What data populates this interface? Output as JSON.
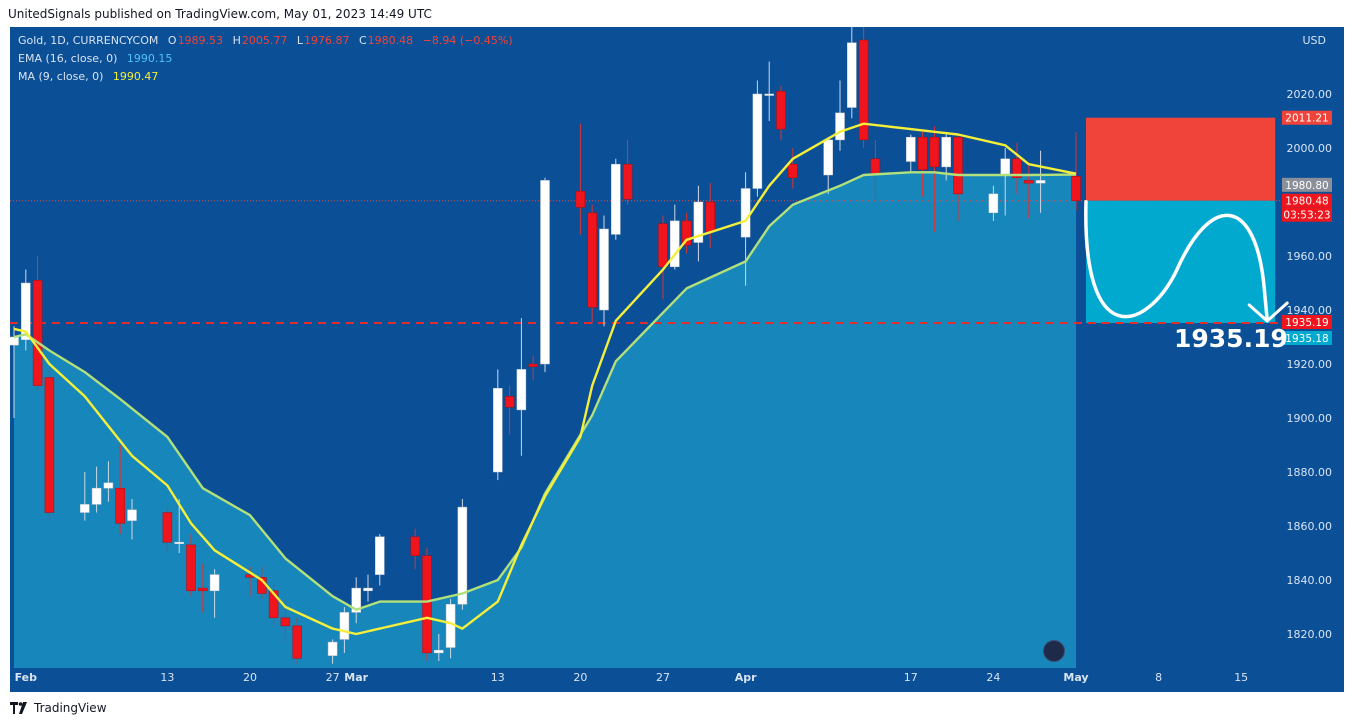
{
  "header": {
    "published": "UnitedSignals published on TradingView.com, May 01, 2023 14:49 UTC"
  },
  "legend": {
    "symbol": "Gold, 1D, CURRENCYCOM",
    "open_label": "O",
    "open": "1989.53",
    "high_label": "H",
    "high": "2005.77",
    "low_label": "L",
    "low": "1976.87",
    "close_label": "C",
    "close": "1980.48",
    "change": "−8.94 (−0.45%)",
    "ema_label": "EMA (16, close, 0)",
    "ema_value": "1990.15",
    "ma_label": "MA (9, close, 0)",
    "ma_value": "1990.47"
  },
  "footer": {
    "brand": "TradingView"
  },
  "colors": {
    "background": "#0b4f97",
    "up_body": "#ffffff",
    "down_body": "#f0151d",
    "ema_line": "#b2e07a",
    "ma_line": "#f5ef3a",
    "area_fill": "#1a8fbf",
    "target_line": "#e02e2e",
    "stop_zone": "#f0433a",
    "target_zone": "#02a9cf"
  },
  "chart_data": {
    "type": "candlestick",
    "currency": "USD",
    "y_ticks": [
      1820,
      1840,
      1860,
      1880,
      1900,
      1920,
      1940,
      1960,
      1980,
      2000,
      2020
    ],
    "y_tick_labels": [
      "1820.00",
      "1840.00",
      "1860.00",
      "1880.00",
      "1900.00",
      "1920.00",
      "1940.00",
      "1960.00",
      "1980.00",
      "2000.00",
      "2020.00"
    ],
    "x_labels": [
      {
        "label": "Feb",
        "date": "2023-02-01"
      },
      {
        "label": "13",
        "date": "2023-02-13"
      },
      {
        "label": "20",
        "date": "2023-02-20"
      },
      {
        "label": "27",
        "date": "2023-02-27"
      },
      {
        "label": "Mar",
        "date": "2023-03-01"
      },
      {
        "label": "13",
        "date": "2023-03-13"
      },
      {
        "label": "20",
        "date": "2023-03-20"
      },
      {
        "label": "27",
        "date": "2023-03-27"
      },
      {
        "label": "Apr",
        "date": "2023-04-03"
      },
      {
        "label": "17",
        "date": "2023-04-17"
      },
      {
        "label": "24",
        "date": "2023-04-24"
      },
      {
        "label": "May",
        "date": "2023-05-01"
      },
      {
        "label": "8",
        "date": "2023-05-08"
      },
      {
        "label": "15",
        "date": "2023-05-15"
      }
    ],
    "candles": [
      {
        "d": "2023-01-31",
        "o": 1927,
        "h": 1934,
        "l": 1900,
        "c": 1930
      },
      {
        "d": "2023-02-01",
        "o": 1929,
        "h": 1955,
        "l": 1925,
        "c": 1950
      },
      {
        "d": "2023-02-02",
        "o": 1951,
        "h": 1960,
        "l": 1910,
        "c": 1912
      },
      {
        "d": "2023-02-03",
        "o": 1915,
        "h": 1918,
        "l": 1862,
        "c": 1865
      },
      {
        "d": "2023-02-06",
        "o": 1865,
        "h": 1880,
        "l": 1862,
        "c": 1868
      },
      {
        "d": "2023-02-07",
        "o": 1868,
        "h": 1882,
        "l": 1865,
        "c": 1874
      },
      {
        "d": "2023-02-08",
        "o": 1874,
        "h": 1884,
        "l": 1869,
        "c": 1876
      },
      {
        "d": "2023-02-09",
        "o": 1874,
        "h": 1890,
        "l": 1857,
        "c": 1861
      },
      {
        "d": "2023-02-10",
        "o": 1862,
        "h": 1870,
        "l": 1855,
        "c": 1866
      },
      {
        "d": "2023-02-13",
        "o": 1865,
        "h": 1867,
        "l": 1850,
        "c": 1854
      },
      {
        "d": "2023-02-14",
        "o": 1854,
        "h": 1870,
        "l": 1850,
        "c": 1854
      },
      {
        "d": "2023-02-15",
        "o": 1853,
        "h": 1857,
        "l": 1834,
        "c": 1836
      },
      {
        "d": "2023-02-16",
        "o": 1837,
        "h": 1846,
        "l": 1828,
        "c": 1836
      },
      {
        "d": "2023-02-17",
        "o": 1836,
        "h": 1844,
        "l": 1826,
        "c": 1842
      },
      {
        "d": "2023-02-20",
        "o": 1842,
        "h": 1845,
        "l": 1834,
        "c": 1841
      },
      {
        "d": "2023-02-21",
        "o": 1841,
        "h": 1845,
        "l": 1833,
        "c": 1835
      },
      {
        "d": "2023-02-22",
        "o": 1836,
        "h": 1839,
        "l": 1823,
        "c": 1826
      },
      {
        "d": "2023-02-23",
        "o": 1826,
        "h": 1833,
        "l": 1817,
        "c": 1823
      },
      {
        "d": "2023-02-24",
        "o": 1823,
        "h": 1826,
        "l": 1809,
        "c": 1811
      },
      {
        "d": "2023-02-27",
        "o": 1812,
        "h": 1818,
        "l": 1809,
        "c": 1817
      },
      {
        "d": "2023-02-28",
        "o": 1818,
        "h": 1830,
        "l": 1813,
        "c": 1828
      },
      {
        "d": "2023-03-01",
        "o": 1828,
        "h": 1841,
        "l": 1824,
        "c": 1837
      },
      {
        "d": "2023-03-02",
        "o": 1836,
        "h": 1842,
        "l": 1832,
        "c": 1837
      },
      {
        "d": "2023-03-03",
        "o": 1842,
        "h": 1857,
        "l": 1838,
        "c": 1856
      },
      {
        "d": "2023-03-06",
        "o": 1856,
        "h": 1859,
        "l": 1844,
        "c": 1849
      },
      {
        "d": "2023-03-07",
        "o": 1849,
        "h": 1852,
        "l": 1810,
        "c": 1813
      },
      {
        "d": "2023-03-08",
        "o": 1813,
        "h": 1820,
        "l": 1810,
        "c": 1814
      },
      {
        "d": "2023-03-09",
        "o": 1815,
        "h": 1833,
        "l": 1811,
        "c": 1831
      },
      {
        "d": "2023-03-10",
        "o": 1831,
        "h": 1870,
        "l": 1829,
        "c": 1867
      },
      {
        "d": "2023-03-13",
        "o": 1880,
        "h": 1918,
        "l": 1877,
        "c": 1911
      },
      {
        "d": "2023-03-14",
        "o": 1908,
        "h": 1912,
        "l": 1894,
        "c": 1904
      },
      {
        "d": "2023-03-15",
        "o": 1903,
        "h": 1937,
        "l": 1886,
        "c": 1918
      },
      {
        "d": "2023-03-16",
        "o": 1920,
        "h": 1923,
        "l": 1914,
        "c": 1919
      },
      {
        "d": "2023-03-17",
        "o": 1920,
        "h": 1989,
        "l": 1917,
        "c": 1988
      },
      {
        "d": "2023-03-20",
        "o": 1984,
        "h": 2009,
        "l": 1968,
        "c": 1978
      },
      {
        "d": "2023-03-21",
        "o": 1976,
        "h": 1979,
        "l": 1935,
        "c": 1941
      },
      {
        "d": "2023-03-22",
        "o": 1940,
        "h": 1975,
        "l": 1934,
        "c": 1970
      },
      {
        "d": "2023-03-23",
        "o": 1968,
        "h": 1996,
        "l": 1966,
        "c": 1994
      },
      {
        "d": "2023-03-24",
        "o": 1994,
        "h": 2003,
        "l": 1979,
        "c": 1981
      },
      {
        "d": "2023-03-27",
        "o": 1972,
        "h": 1975,
        "l": 1944,
        "c": 1956
      },
      {
        "d": "2023-03-28",
        "o": 1956,
        "h": 1979,
        "l": 1955,
        "c": 1973
      },
      {
        "d": "2023-03-29",
        "o": 1973,
        "h": 1976,
        "l": 1961,
        "c": 1964
      },
      {
        "d": "2023-03-30",
        "o": 1965,
        "h": 1986,
        "l": 1958,
        "c": 1980
      },
      {
        "d": "2023-03-31",
        "o": 1980,
        "h": 1987,
        "l": 1963,
        "c": 1969
      },
      {
        "d": "2023-04-03",
        "o": 1967,
        "h": 1991,
        "l": 1949,
        "c": 1985
      },
      {
        "d": "2023-04-04",
        "o": 1985,
        "h": 2025,
        "l": 1982,
        "c": 2020
      },
      {
        "d": "2023-04-05",
        "o": 2020,
        "h": 2032,
        "l": 2010,
        "c": 2020
      },
      {
        "d": "2023-04-06",
        "o": 2021,
        "h": 2023,
        "l": 2003,
        "c": 2007
      },
      {
        "d": "2023-04-07",
        "o": 1994,
        "h": 2000,
        "l": 1985,
        "c": 1989
      },
      {
        "d": "2023-04-10",
        "o": 1990,
        "h": 2003,
        "l": 1983,
        "c": 2003
      },
      {
        "d": "2023-04-11",
        "o": 2003,
        "h": 2025,
        "l": 1999,
        "c": 2013
      },
      {
        "d": "2023-04-12",
        "o": 2015,
        "h": 2049,
        "l": 2011,
        "c": 2039
      },
      {
        "d": "2023-04-13",
        "o": 2040,
        "h": 2049,
        "l": 2000,
        "c": 2003
      },
      {
        "d": "2023-04-14",
        "o": 1996,
        "h": 2003,
        "l": 1981,
        "c": 1990
      },
      {
        "d": "2023-04-17",
        "o": 1995,
        "h": 2005,
        "l": 1991,
        "c": 2004
      },
      {
        "d": "2023-04-18",
        "o": 2004,
        "h": 2007,
        "l": 1982,
        "c": 1992
      },
      {
        "d": "2023-04-19",
        "o": 2004,
        "h": 2008,
        "l": 1969,
        "c": 1993
      },
      {
        "d": "2023-04-20",
        "o": 1993,
        "h": 2005,
        "l": 1988,
        "c": 2004
      },
      {
        "d": "2023-04-21",
        "o": 2004,
        "h": 2005,
        "l": 1973,
        "c": 1983
      },
      {
        "d": "2023-04-24",
        "o": 1976,
        "h": 1986,
        "l": 1973,
        "c": 1983
      },
      {
        "d": "2023-04-25",
        "o": 1990,
        "h": 2000,
        "l": 1975,
        "c": 1996
      },
      {
        "d": "2023-04-26",
        "o": 1996,
        "h": 2002,
        "l": 1983,
        "c": 1989
      },
      {
        "d": "2023-04-27",
        "o": 1988,
        "h": 1994,
        "l": 1974,
        "c": 1987
      },
      {
        "d": "2023-04-28",
        "o": 1987,
        "h": 1999,
        "l": 1976,
        "c": 1988
      },
      {
        "d": "2023-05-01",
        "o": 1989.53,
        "h": 2005.77,
        "l": 1976.87,
        "c": 1980.48
      }
    ],
    "ema": [
      [
        "2023-01-31",
        1930
      ],
      [
        "2023-02-01",
        1931
      ],
      [
        "2023-02-03",
        1925
      ],
      [
        "2023-02-06",
        1917
      ],
      [
        "2023-02-09",
        1907
      ],
      [
        "2023-02-13",
        1893
      ],
      [
        "2023-02-16",
        1874
      ],
      [
        "2023-02-20",
        1864
      ],
      [
        "2023-02-23",
        1848
      ],
      [
        "2023-02-27",
        1834
      ],
      [
        "2023-03-01",
        1829
      ],
      [
        "2023-03-03",
        1832
      ],
      [
        "2023-03-07",
        1832
      ],
      [
        "2023-03-10",
        1835
      ],
      [
        "2023-03-13",
        1840
      ],
      [
        "2023-03-15",
        1852
      ],
      [
        "2023-03-17",
        1872
      ],
      [
        "2023-03-21",
        1901
      ],
      [
        "2023-03-23",
        1921
      ],
      [
        "2023-03-27",
        1939
      ],
      [
        "2023-03-29",
        1948
      ],
      [
        "2023-04-03",
        1958
      ],
      [
        "2023-04-05",
        1971
      ],
      [
        "2023-04-07",
        1979
      ],
      [
        "2023-04-11",
        1986
      ],
      [
        "2023-04-13",
        1990
      ],
      [
        "2023-04-17",
        1991
      ],
      [
        "2023-04-19",
        1991
      ],
      [
        "2023-04-21",
        1990
      ],
      [
        "2023-04-25",
        1990
      ],
      [
        "2023-04-27",
        1990
      ],
      [
        "2023-05-01",
        1990.15
      ]
    ],
    "ma": [
      [
        "2023-01-31",
        1933
      ],
      [
        "2023-02-01",
        1932
      ],
      [
        "2023-02-03",
        1920
      ],
      [
        "2023-02-06",
        1908
      ],
      [
        "2023-02-08",
        1897
      ],
      [
        "2023-02-10",
        1886
      ],
      [
        "2023-02-13",
        1875
      ],
      [
        "2023-02-15",
        1861
      ],
      [
        "2023-02-17",
        1851
      ],
      [
        "2023-02-21",
        1840
      ],
      [
        "2023-02-23",
        1830
      ],
      [
        "2023-02-27",
        1822
      ],
      [
        "2023-03-01",
        1820
      ],
      [
        "2023-03-03",
        1822
      ],
      [
        "2023-03-07",
        1826
      ],
      [
        "2023-03-09",
        1824
      ],
      [
        "2023-03-10",
        1822
      ],
      [
        "2023-03-13",
        1832
      ],
      [
        "2023-03-15",
        1853
      ],
      [
        "2023-03-17",
        1871
      ],
      [
        "2023-03-20",
        1893
      ],
      [
        "2023-03-21",
        1912
      ],
      [
        "2023-03-23",
        1936
      ],
      [
        "2023-03-27",
        1955
      ],
      [
        "2023-03-29",
        1966
      ],
      [
        "2023-04-03",
        1973
      ],
      [
        "2023-04-05",
        1986
      ],
      [
        "2023-04-07",
        1996
      ],
      [
        "2023-04-11",
        2006
      ],
      [
        "2023-04-13",
        2009
      ],
      [
        "2023-04-17",
        2007
      ],
      [
        "2023-04-19",
        2006
      ],
      [
        "2023-04-21",
        2005
      ],
      [
        "2023-04-25",
        2001
      ],
      [
        "2023-04-27",
        1994
      ],
      [
        "2023-05-01",
        1990.47
      ]
    ],
    "target_level": 1935.19,
    "position": {
      "entry": 1980.48,
      "stop": 2011.21,
      "target": 1935.18,
      "start_date": "2023-05-01",
      "end_date": "2023-05-15"
    },
    "price_labels": [
      {
        "text": "2011.21",
        "value": 2011.21,
        "kind": "stop"
      },
      {
        "text": "1980.80",
        "value": 1980.8,
        "kind": "grey"
      },
      {
        "text": "1980.48",
        "value": 1980.48,
        "kind": "last"
      },
      {
        "text": "03:53:23",
        "value": 1980.48,
        "kind": "countdown"
      },
      {
        "text": "1935.19",
        "value": 1935.19,
        "kind": "level"
      },
      {
        "text": "1935.18",
        "value": 1935.18,
        "kind": "target"
      }
    ],
    "annotation": "1935.19"
  }
}
